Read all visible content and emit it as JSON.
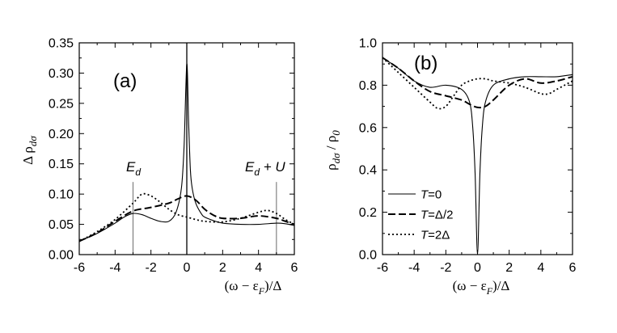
{
  "chart_data": [
    {
      "type": "line",
      "panel_label": "(a)",
      "ylabel": "Δ ρ_dσ",
      "xlabel": "(ω − ε_F)/Δ",
      "xlim": [
        -6,
        6
      ],
      "ylim": [
        0.0,
        0.35
      ],
      "xticks": [
        "-6",
        "-4",
        "-2",
        "0",
        "2",
        "4",
        "6"
      ],
      "yticks": [
        "0.00",
        "0.05",
        "0.10",
        "0.15",
        "0.20",
        "0.25",
        "0.30",
        "0.35"
      ],
      "annotations": [
        {
          "text_main": "E",
          "text_sub": "d",
          "text_rest": "",
          "x": -3
        },
        {
          "text_main": "E",
          "text_sub": "d",
          "text_rest": " + U",
          "x": 5
        }
      ],
      "vlines": [
        -3,
        0,
        5
      ],
      "series": [
        {
          "name": "T=0",
          "style": "solid",
          "x": [
            -6,
            -5,
            -4,
            -3.5,
            -3,
            -2.5,
            -2,
            -1.5,
            -1,
            -0.6,
            -0.3,
            -0.15,
            0,
            0.1,
            0.2,
            0.3,
            0.5,
            0.8,
            1,
            1.5,
            2,
            3,
            4,
            5,
            5.5,
            6
          ],
          "y": [
            0.022,
            0.035,
            0.052,
            0.062,
            0.068,
            0.066,
            0.06,
            0.055,
            0.055,
            0.07,
            0.11,
            0.18,
            0.315,
            0.22,
            0.14,
            0.11,
            0.085,
            0.068,
            0.062,
            0.056,
            0.052,
            0.05,
            0.05,
            0.052,
            0.051,
            0.048
          ]
        },
        {
          "name": "T=Δ/2",
          "style": "dashed",
          "x": [
            -6,
            -5,
            -4,
            -3,
            -2,
            -1,
            -0.5,
            0,
            0.5,
            1,
            1.5,
            2,
            3,
            4,
            5,
            5.5,
            6
          ],
          "y": [
            0.022,
            0.036,
            0.055,
            0.072,
            0.078,
            0.085,
            0.092,
            0.097,
            0.09,
            0.075,
            0.065,
            0.06,
            0.06,
            0.064,
            0.06,
            0.055,
            0.05
          ]
        },
        {
          "name": "T=2Δ",
          "style": "dotted",
          "x": [
            -6,
            -5,
            -4,
            -3,
            -2.5,
            -2,
            -1.5,
            -1,
            -0.5,
            0,
            0.5,
            1,
            2,
            3,
            4,
            4.5,
            5,
            5.5,
            6
          ],
          "y": [
            0.022,
            0.038,
            0.058,
            0.085,
            0.1,
            0.097,
            0.087,
            0.075,
            0.066,
            0.062,
            0.058,
            0.055,
            0.054,
            0.06,
            0.07,
            0.073,
            0.068,
            0.058,
            0.05
          ]
        }
      ]
    },
    {
      "type": "line",
      "panel_label": "(b)",
      "ylabel": "ρ_dσ / ρ_0",
      "xlabel": "(ω − ε_F)/Δ",
      "xlim": [
        -6,
        6
      ],
      "ylim": [
        0.0,
        1.0
      ],
      "xticks": [
        "-6",
        "-4",
        "-2",
        "0",
        "2",
        "4",
        "6"
      ],
      "yticks": [
        "0.0",
        "0.2",
        "0.4",
        "0.6",
        "0.8",
        "1.0"
      ],
      "legend": {
        "placement": "lower-left",
        "entries": [
          "T=0",
          "T=Δ/2",
          "T=2Δ"
        ]
      },
      "series": [
        {
          "name": "T=0",
          "style": "solid",
          "x": [
            -6,
            -5,
            -4,
            -3,
            -2,
            -1,
            -0.5,
            -0.3,
            -0.15,
            0,
            0.15,
            0.3,
            0.5,
            1,
            2,
            3,
            4,
            5,
            6
          ],
          "y": [
            0.93,
            0.88,
            0.82,
            0.79,
            0.8,
            0.78,
            0.72,
            0.6,
            0.38,
            0.0,
            0.38,
            0.6,
            0.72,
            0.8,
            0.83,
            0.84,
            0.84,
            0.84,
            0.85
          ]
        },
        {
          "name": "T=Δ/2",
          "style": "dashed",
          "x": [
            -6,
            -5,
            -4,
            -3,
            -2,
            -1,
            -0.5,
            0,
            0.5,
            1,
            2,
            3,
            4,
            5,
            6
          ],
          "y": [
            0.93,
            0.88,
            0.82,
            0.77,
            0.75,
            0.73,
            0.71,
            0.695,
            0.7,
            0.73,
            0.8,
            0.83,
            0.81,
            0.82,
            0.84
          ]
        },
        {
          "name": "T=2Δ",
          "style": "dotted",
          "x": [
            -6,
            -5,
            -4,
            -3,
            -2.5,
            -2,
            -1.5,
            -1,
            -0.5,
            0,
            0.5,
            1,
            2,
            3,
            4,
            4.5,
            5,
            5.5,
            6
          ],
          "y": [
            0.93,
            0.86,
            0.79,
            0.72,
            0.69,
            0.7,
            0.75,
            0.8,
            0.82,
            0.83,
            0.83,
            0.82,
            0.81,
            0.79,
            0.76,
            0.76,
            0.78,
            0.8,
            0.82
          ]
        }
      ]
    }
  ]
}
